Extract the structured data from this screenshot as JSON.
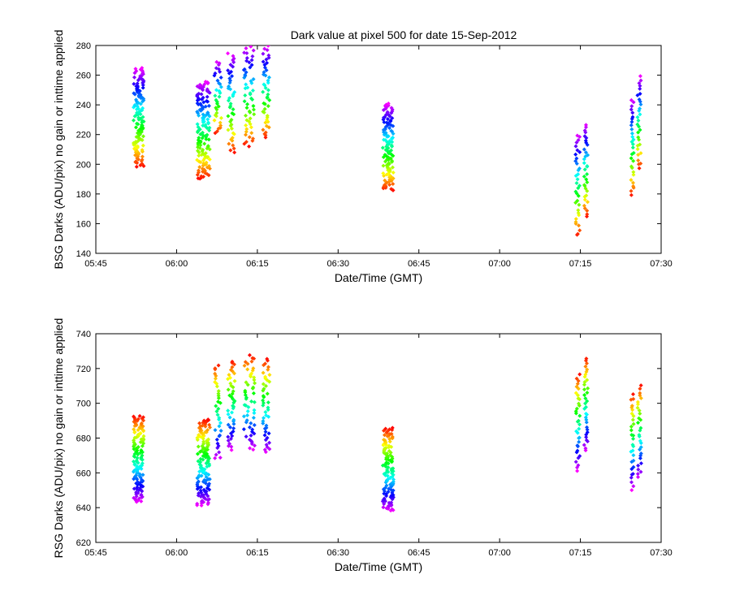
{
  "figure": {
    "title": "Dark value at pixel 500 for date 15-Sep-2012"
  },
  "chart_data": [
    {
      "type": "scatter",
      "name": "bsg-panel",
      "title": "Dark value at pixel 500 for date 15-Sep-2012",
      "xlabel": "Date/Time (GMT)",
      "ylabel": "BSG Darks (ADU/pix) no gain or inttime applied",
      "x_ticks": [
        "05:45",
        "06:00",
        "06:15",
        "06:30",
        "06:45",
        "07:00",
        "07:15",
        "07:30"
      ],
      "x_tick_minutes": [
        345,
        360,
        375,
        390,
        405,
        420,
        435,
        450
      ],
      "xlim_minutes": [
        345,
        450
      ],
      "ylim": [
        140,
        280
      ],
      "y_ticks": [
        140,
        160,
        180,
        200,
        220,
        240,
        260,
        280
      ],
      "color_scale": "rainbow by sample (red→magenta)",
      "marker": "diamond",
      "clusters": [
        {
          "start_time": "05:52",
          "x_minutes": [
            352.0,
            353.9
          ],
          "y_range": [
            198,
            265
          ],
          "points": 130
        },
        {
          "start_time": "06:03",
          "x_minutes": [
            363.8,
            366.2
          ],
          "y_range": [
            190,
            256
          ],
          "points": 140
        },
        {
          "start_time": "06:08",
          "x_minutes": [
            367.0,
            368.3
          ],
          "y_range": [
            220,
            270
          ],
          "points": 35
        },
        {
          "start_time": "06:09",
          "x_minutes": [
            369.5,
            370.8
          ],
          "y_range": [
            207,
            275
          ],
          "points": 45
        },
        {
          "start_time": "06:12",
          "x_minutes": [
            372.5,
            374.5
          ],
          "y_range": [
            212,
            280
          ],
          "points": 55
        },
        {
          "start_time": "06:16",
          "x_minutes": [
            376.0,
            377.3
          ],
          "y_range": [
            217,
            280
          ],
          "points": 45
        },
        {
          "start_time": "06:38",
          "x_minutes": [
            398.3,
            400.3
          ],
          "y_range": [
            182,
            241
          ],
          "points": 120
        },
        {
          "start_time": "07:14",
          "x_minutes": [
            434.1,
            434.9
          ],
          "y_range": [
            151,
            221
          ],
          "points": 35
        },
        {
          "start_time": "07:15",
          "x_minutes": [
            435.7,
            436.4
          ],
          "y_range": [
            164,
            228
          ],
          "points": 35
        },
        {
          "start_time": "07:24",
          "x_minutes": [
            444.4,
            444.9
          ],
          "y_range": [
            178,
            245
          ],
          "points": 30
        },
        {
          "start_time": "07:25",
          "x_minutes": [
            445.6,
            446.3
          ],
          "y_range": [
            196,
            260
          ],
          "points": 30
        }
      ]
    },
    {
      "type": "scatter",
      "name": "rsg-panel",
      "title": "",
      "xlabel": "Date/Time (GMT)",
      "ylabel": "RSG Darks (ADU/pix) no gain or inttime applied",
      "x_ticks": [
        "05:45",
        "06:00",
        "06:15",
        "06:30",
        "06:45",
        "07:00",
        "07:15",
        "07:30"
      ],
      "x_tick_minutes": [
        345,
        360,
        375,
        390,
        405,
        420,
        435,
        450
      ],
      "xlim_minutes": [
        345,
        450
      ],
      "ylim": [
        620,
        740
      ],
      "y_ticks": [
        620,
        640,
        660,
        680,
        700,
        720,
        740
      ],
      "color_scale": "rainbow by sample (red→magenta, reversed ordering vs BSG)",
      "marker": "diamond",
      "clusters": [
        {
          "start_time": "05:52",
          "x_minutes": [
            352.0,
            353.9
          ],
          "y_range": [
            643,
            693
          ],
          "points": 130
        },
        {
          "start_time": "06:03",
          "x_minutes": [
            363.8,
            366.2
          ],
          "y_range": [
            641,
            691
          ],
          "points": 140
        },
        {
          "start_time": "06:08",
          "x_minutes": [
            367.0,
            368.3
          ],
          "y_range": [
            667,
            723
          ],
          "points": 35
        },
        {
          "start_time": "06:09",
          "x_minutes": [
            369.5,
            370.8
          ],
          "y_range": [
            673,
            725
          ],
          "points": 45
        },
        {
          "start_time": "06:12",
          "x_minutes": [
            372.5,
            374.5
          ],
          "y_range": [
            673,
            728
          ],
          "points": 55
        },
        {
          "start_time": "06:16",
          "x_minutes": [
            376.0,
            377.3
          ],
          "y_range": [
            671,
            726
          ],
          "points": 45
        },
        {
          "start_time": "06:38",
          "x_minutes": [
            398.3,
            400.3
          ],
          "y_range": [
            638,
            686
          ],
          "points": 120
        },
        {
          "start_time": "07:14",
          "x_minutes": [
            434.1,
            434.9
          ],
          "y_range": [
            661,
            717
          ],
          "points": 35
        },
        {
          "start_time": "07:15",
          "x_minutes": [
            435.7,
            436.4
          ],
          "y_range": [
            672,
            727
          ],
          "points": 35
        },
        {
          "start_time": "07:24",
          "x_minutes": [
            444.4,
            444.9
          ],
          "y_range": [
            650,
            706
          ],
          "points": 30
        },
        {
          "start_time": "07:25",
          "x_minutes": [
            445.6,
            446.3
          ],
          "y_range": [
            656,
            711
          ],
          "points": 30
        }
      ]
    }
  ]
}
